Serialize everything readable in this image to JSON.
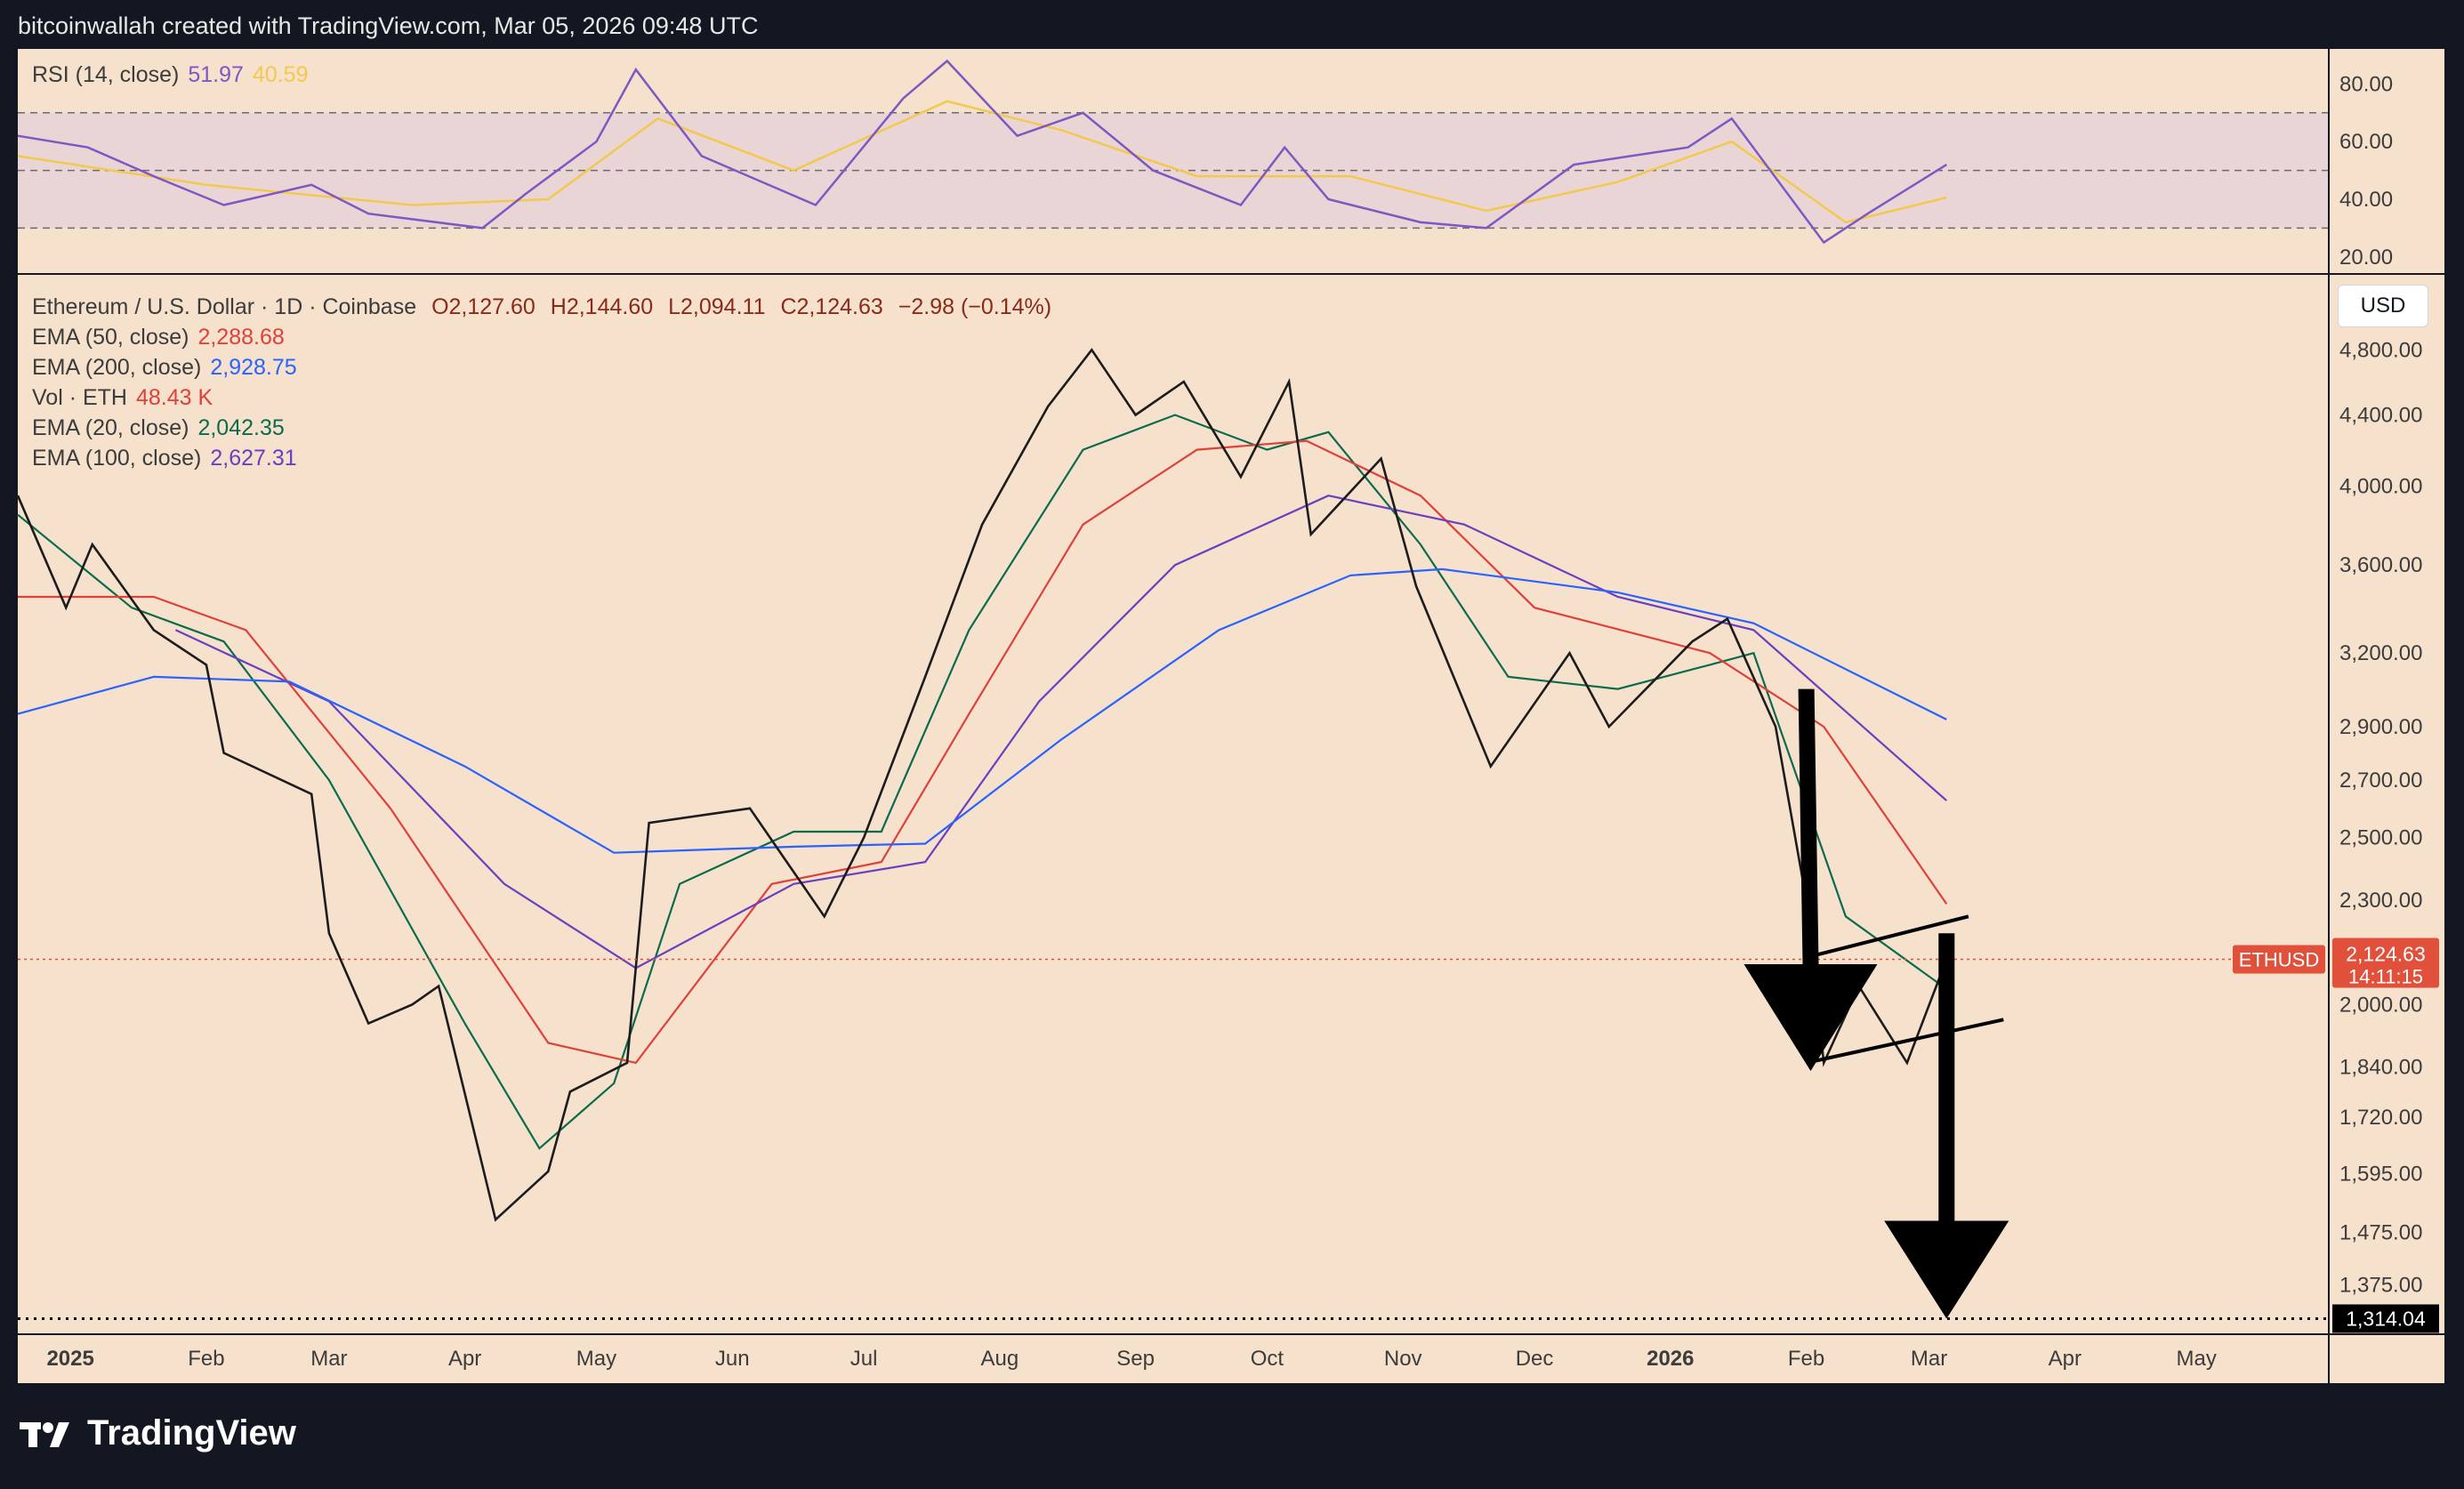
{
  "header": {
    "attribution": "bitcoinwallah created with TradingView.com, Mar 05, 2026 09:48 UTC"
  },
  "rsi_panel": {
    "label": "RSI (14, close)",
    "rsi_value": "51.97",
    "ma_value": "40.59",
    "axis_ticks": [
      "80.00",
      "60.00",
      "40.00",
      "20.00"
    ],
    "colors": {
      "rsi": "#7e57c2",
      "ma": "#f2c94c",
      "band": "#e6d0d9"
    }
  },
  "main_panel": {
    "symbol_line": "Ethereum / U.S. Dollar · 1D · Coinbase",
    "ohlc": {
      "o": "O2,127.60",
      "h": "H2,144.60",
      "l": "L2,094.11",
      "c": "C2,124.63",
      "chg": "−2.98 (−0.14%)"
    },
    "indicators": [
      {
        "label": "EMA (50, close)",
        "value": "2,288.68",
        "color": "#e0403a"
      },
      {
        "label": "EMA (200, close)",
        "value": "2,928.75",
        "color": "#2962ff"
      },
      {
        "label": "Vol · ETH",
        "value": "48.43 K",
        "color": "#e0403a"
      },
      {
        "label": "EMA (20, close)",
        "value": "2,042.35",
        "color": "#0c6b4c"
      },
      {
        "label": "EMA (100, close)",
        "value": "2,627.31",
        "color": "#6a3fc0"
      }
    ],
    "currency_button": "USD",
    "price_tag": {
      "symbol": "ETHUSD",
      "price": "2,124.63",
      "countdown": "14:11:15",
      "color": "#e0503a"
    },
    "support_tag": {
      "price": "1,314.04"
    }
  },
  "footer": {
    "brand": "TradingView"
  },
  "chart_data": {
    "type": "candlestick",
    "title": "Ethereum / U.S. Dollar · 1D · Coinbase",
    "ylabel": "",
    "xlabel": "",
    "y_scale": "log",
    "ylim": [
      1290,
      5300
    ],
    "y_ticks": [
      "4,800.00",
      "4,400.00",
      "4,000.00",
      "3,600.00",
      "3,200.00",
      "2,900.00",
      "2,700.00",
      "2,500.00",
      "2,300.00",
      "2,000.00",
      "1,840.00",
      "1,720.00",
      "1,595.00",
      "1,475.00",
      "1,375.00"
    ],
    "x_ticks": [
      "2025",
      "Feb",
      "Mar",
      "Apr",
      "May",
      "Jun",
      "Jul",
      "Aug",
      "Sep",
      "Oct",
      "Nov",
      "Dec",
      "2026",
      "Feb",
      "Mar",
      "Apr",
      "May"
    ],
    "price_path": [
      [
        "2024-12-20",
        3950
      ],
      [
        "2024-12-31",
        3400
      ],
      [
        "2025-01-06",
        3700
      ],
      [
        "2025-01-20",
        3300
      ],
      [
        "2025-02-01",
        3150
      ],
      [
        "2025-02-05",
        2800
      ],
      [
        "2025-02-25",
        2650
      ],
      [
        "2025-03-01",
        2200
      ],
      [
        "2025-03-10",
        1950
      ],
      [
        "2025-03-20",
        2000
      ],
      [
        "2025-03-26",
        2050
      ],
      [
        "2025-04-08",
        1500
      ],
      [
        "2025-04-20",
        1600
      ],
      [
        "2025-04-25",
        1780
      ],
      [
        "2025-05-08",
        1850
      ],
      [
        "2025-05-13",
        2550
      ],
      [
        "2025-06-05",
        2600
      ],
      [
        "2025-06-22",
        2250
      ],
      [
        "2025-07-01",
        2500
      ],
      [
        "2025-07-15",
        3100
      ],
      [
        "2025-07-28",
        3800
      ],
      [
        "2025-08-12",
        4450
      ],
      [
        "2025-08-22",
        4800
      ],
      [
        "2025-09-01",
        4400
      ],
      [
        "2025-09-12",
        4600
      ],
      [
        "2025-09-25",
        4050
      ],
      [
        "2025-10-06",
        4600
      ],
      [
        "2025-10-11",
        3750
      ],
      [
        "2025-10-27",
        4150
      ],
      [
        "2025-11-04",
        3500
      ],
      [
        "2025-11-21",
        2750
      ],
      [
        "2025-12-09",
        3200
      ],
      [
        "2025-12-18",
        2900
      ],
      [
        "2026-01-06",
        3250
      ],
      [
        "2026-01-14",
        3350
      ],
      [
        "2026-01-25",
        2900
      ],
      [
        "2026-02-01",
        2300
      ],
      [
        "2026-02-05",
        1850
      ],
      [
        "2026-02-13",
        2050
      ],
      [
        "2026-02-24",
        1850
      ],
      [
        "2026-03-05",
        2125
      ]
    ],
    "series": [
      {
        "name": "EMA (20, close)",
        "color": "#0c6b4c",
        "points": [
          [
            "2024-12-20",
            3850
          ],
          [
            "2025-01-15",
            3400
          ],
          [
            "2025-02-05",
            3250
          ],
          [
            "2025-03-01",
            2700
          ],
          [
            "2025-04-01",
            1950
          ],
          [
            "2025-04-18",
            1650
          ],
          [
            "2025-05-05",
            1800
          ],
          [
            "2025-05-20",
            2350
          ],
          [
            "2025-06-15",
            2520
          ],
          [
            "2025-07-05",
            2520
          ],
          [
            "2025-07-25",
            3300
          ],
          [
            "2025-08-20",
            4200
          ],
          [
            "2025-09-10",
            4400
          ],
          [
            "2025-10-01",
            4200
          ],
          [
            "2025-10-15",
            4300
          ],
          [
            "2025-11-05",
            3700
          ],
          [
            "2025-11-25",
            3100
          ],
          [
            "2025-12-20",
            3050
          ],
          [
            "2026-01-10",
            3150
          ],
          [
            "2026-01-20",
            3200
          ],
          [
            "2026-02-10",
            2250
          ],
          [
            "2026-03-05",
            2042
          ]
        ]
      },
      {
        "name": "EMA (50, close)",
        "color": "#e0403a",
        "points": [
          [
            "2024-12-20",
            3450
          ],
          [
            "2025-01-20",
            3450
          ],
          [
            "2025-02-10",
            3300
          ],
          [
            "2025-03-15",
            2600
          ],
          [
            "2025-04-20",
            1900
          ],
          [
            "2025-05-10",
            1850
          ],
          [
            "2025-06-10",
            2350
          ],
          [
            "2025-07-05",
            2420
          ],
          [
            "2025-07-25",
            2950
          ],
          [
            "2025-08-20",
            3800
          ],
          [
            "2025-09-15",
            4200
          ],
          [
            "2025-10-10",
            4250
          ],
          [
            "2025-11-05",
            3950
          ],
          [
            "2025-12-01",
            3400
          ],
          [
            "2026-01-10",
            3200
          ],
          [
            "2026-02-05",
            2900
          ],
          [
            "2026-03-05",
            2288
          ]
        ]
      },
      {
        "name": "EMA (100, close)",
        "color": "#6a3fc0",
        "points": [
          [
            "2025-01-25",
            3300
          ],
          [
            "2025-03-01",
            3000
          ],
          [
            "2025-04-10",
            2350
          ],
          [
            "2025-05-10",
            2100
          ],
          [
            "2025-06-15",
            2350
          ],
          [
            "2025-07-15",
            2420
          ],
          [
            "2025-08-10",
            3000
          ],
          [
            "2025-09-10",
            3600
          ],
          [
            "2025-10-15",
            3950
          ],
          [
            "2025-11-15",
            3800
          ],
          [
            "2025-12-20",
            3450
          ],
          [
            "2026-01-20",
            3300
          ],
          [
            "2026-03-05",
            2627
          ]
        ]
      },
      {
        "name": "EMA (200, close)",
        "color": "#2962ff",
        "points": [
          [
            "2024-12-20",
            2950
          ],
          [
            "2025-01-20",
            3100
          ],
          [
            "2025-02-20",
            3080
          ],
          [
            "2025-04-01",
            2750
          ],
          [
            "2025-05-05",
            2450
          ],
          [
            "2025-06-15",
            2470
          ],
          [
            "2025-07-15",
            2480
          ],
          [
            "2025-08-15",
            2850
          ],
          [
            "2025-09-20",
            3300
          ],
          [
            "2025-10-20",
            3550
          ],
          [
            "2025-11-10",
            3580
          ],
          [
            "2025-12-20",
            3470
          ],
          [
            "2026-01-20",
            3330
          ],
          [
            "2026-03-05",
            2928
          ]
        ]
      }
    ],
    "annotations": {
      "upper_channel": [
        [
          "2026-02-01",
          2130
        ],
        [
          "2026-03-10",
          2250
        ]
      ],
      "lower_channel": [
        [
          "2026-02-01",
          1850
        ],
        [
          "2026-03-18",
          1960
        ]
      ],
      "arrow_1": {
        "from": [
          "2026-02-01",
          3050
        ],
        "to": [
          "2026-02-02",
          1830
        ]
      },
      "arrow_2": {
        "from": [
          "2026-03-05",
          2200
        ],
        "to": [
          "2026-03-05",
          1314
        ]
      },
      "support_level": 1314.04,
      "last_price": 2124.63
    },
    "rsi": {
      "ylim": [
        15,
        90
      ],
      "levels": [
        70,
        50,
        30
      ],
      "points": [
        [
          "2024-12-20",
          62
        ],
        [
          "2025-01-05",
          58
        ],
        [
          "2025-01-20",
          48
        ],
        [
          "2025-02-05",
          38
        ],
        [
          "2025-02-25",
          45
        ],
        [
          "2025-03-10",
          35
        ],
        [
          "2025-04-05",
          30
        ],
        [
          "2025-04-15",
          42
        ],
        [
          "2025-05-01",
          60
        ],
        [
          "2025-05-10",
          85
        ],
        [
          "2025-05-25",
          55
        ],
        [
          "2025-06-20",
          38
        ],
        [
          "2025-07-10",
          75
        ],
        [
          "2025-07-20",
          88
        ],
        [
          "2025-08-05",
          62
        ],
        [
          "2025-08-20",
          70
        ],
        [
          "2025-09-05",
          50
        ],
        [
          "2025-09-25",
          38
        ],
        [
          "2025-10-05",
          58
        ],
        [
          "2025-10-15",
          40
        ],
        [
          "2025-11-05",
          32
        ],
        [
          "2025-11-20",
          30
        ],
        [
          "2025-12-10",
          52
        ],
        [
          "2026-01-05",
          58
        ],
        [
          "2026-01-15",
          68
        ],
        [
          "2026-02-05",
          25
        ],
        [
          "2026-02-15",
          35
        ],
        [
          "2026-03-05",
          52
        ]
      ],
      "ma_points": [
        [
          "2024-12-20",
          55
        ],
        [
          "2025-02-01",
          45
        ],
        [
          "2025-03-20",
          38
        ],
        [
          "2025-04-20",
          40
        ],
        [
          "2025-05-15",
          68
        ],
        [
          "2025-06-15",
          50
        ],
        [
          "2025-07-20",
          74
        ],
        [
          "2025-08-15",
          64
        ],
        [
          "2025-09-15",
          48
        ],
        [
          "2025-10-20",
          48
        ],
        [
          "2025-11-20",
          36
        ],
        [
          "2025-12-20",
          46
        ],
        [
          "2026-01-15",
          60
        ],
        [
          "2026-02-10",
          32
        ],
        [
          "2026-03-05",
          40.59
        ]
      ]
    }
  }
}
